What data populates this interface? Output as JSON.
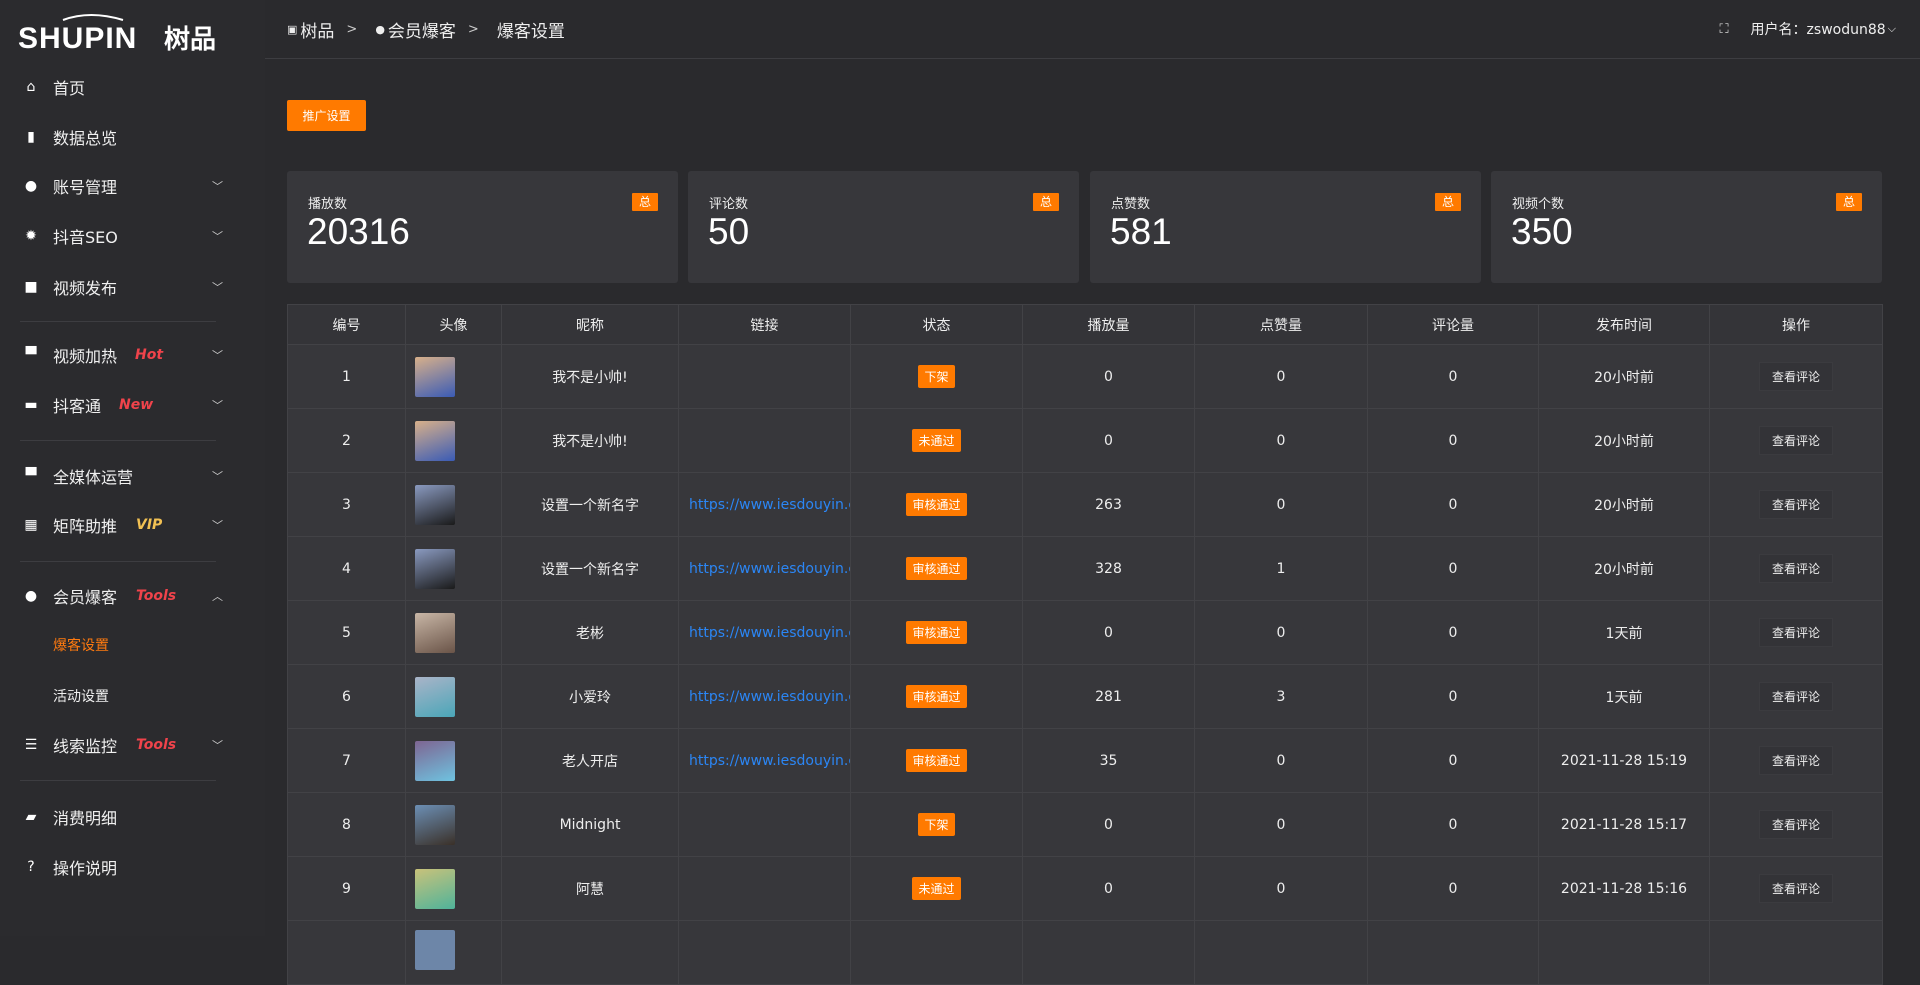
{
  "brand": {
    "logo_text": "SHUPIN 树品"
  },
  "sidebar": {
    "items": [
      {
        "label": "首页",
        "icon": "home-icon",
        "glyph": "⌂",
        "chevron": false
      },
      {
        "label": "数据总览",
        "icon": "bar-chart-icon",
        "glyph": "▮",
        "chevron": false
      },
      {
        "label": "账号管理",
        "icon": "user-icon",
        "glyph": "●",
        "chevron": "down"
      },
      {
        "label": "抖音SEO",
        "icon": "gear-icon",
        "glyph": "✹",
        "chevron": "down"
      },
      {
        "label": "视频发布",
        "icon": "camera-icon",
        "glyph": "■",
        "chevron": "down"
      },
      {
        "label": "视频加热",
        "icon": "monitor-icon",
        "glyph": "▀",
        "chevron": "down",
        "badge": "Hot"
      },
      {
        "label": "抖客通",
        "icon": "chat-icon",
        "glyph": "▬",
        "chevron": "down",
        "badge": "New"
      },
      {
        "label": "全媒体运营",
        "icon": "desktop-icon",
        "glyph": "▀",
        "chevron": "down"
      },
      {
        "label": "矩阵助推",
        "icon": "grid-icon",
        "glyph": "▦",
        "chevron": "down",
        "badge": "VIP"
      },
      {
        "label": "会员爆客",
        "icon": "user-icon",
        "glyph": "●",
        "chevron": "up",
        "badge": "Tools"
      },
      {
        "label": "爆客设置",
        "sub": true,
        "active": true
      },
      {
        "label": "活动设置",
        "sub": true
      },
      {
        "label": "线索监控",
        "icon": "sliders-icon",
        "glyph": "☰",
        "chevron": "down",
        "badge": "Tools"
      },
      {
        "label": "消费明细",
        "icon": "wallet-icon",
        "glyph": "▰",
        "chevron": false
      },
      {
        "label": "操作说明",
        "icon": "help-icon",
        "glyph": "?",
        "chevron": false
      }
    ]
  },
  "header": {
    "breadcrumb": [
      "树品",
      "会员爆客",
      "爆客设置"
    ],
    "user_label": "用户名：zswodun88"
  },
  "toolbar": {
    "promo_label": "推广设置"
  },
  "stats": [
    {
      "title": "播放数",
      "value": "20316",
      "tag": "总"
    },
    {
      "title": "评论数",
      "value": "50",
      "tag": "总"
    },
    {
      "title": "点赞数",
      "value": "581",
      "tag": "总"
    },
    {
      "title": "视频个数",
      "value": "350",
      "tag": "总"
    }
  ],
  "table": {
    "columns": [
      "编号",
      "头像",
      "昵称",
      "链接",
      "状态",
      "播放量",
      "点赞量",
      "评论量",
      "发布时间",
      "操作"
    ],
    "action_label": "查看评论",
    "rows": [
      {
        "id": "1",
        "name": "我不是小帅!",
        "link": "",
        "status": "下架",
        "plays": "0",
        "likes": "0",
        "comments": "0",
        "time": "20小时前",
        "avatar": [
          "#d8b08a",
          "#3a5bb5"
        ]
      },
      {
        "id": "2",
        "name": "我不是小帅!",
        "link": "",
        "status": "未通过",
        "plays": "0",
        "likes": "0",
        "comments": "0",
        "time": "20小时前",
        "avatar": [
          "#d8b08a",
          "#3a5bb5"
        ]
      },
      {
        "id": "3",
        "name": "设置一个新名字",
        "link": "https://www.iesdouyin.c",
        "status": "审核通过",
        "plays": "263",
        "likes": "0",
        "comments": "0",
        "time": "20小时前",
        "avatar": [
          "#8a9ac0",
          "#1a1a1a"
        ]
      },
      {
        "id": "4",
        "name": "设置一个新名字",
        "link": "https://www.iesdouyin.c",
        "status": "审核通过",
        "plays": "328",
        "likes": "1",
        "comments": "0",
        "time": "20小时前",
        "avatar": [
          "#8a9ac0",
          "#1a1a1a"
        ]
      },
      {
        "id": "5",
        "name": "老彬",
        "link": "https://www.iesdouyin.c",
        "status": "审核通过",
        "plays": "0",
        "likes": "0",
        "comments": "0",
        "time": "1天前",
        "avatar": [
          "#c8b6a6",
          "#6a5448"
        ]
      },
      {
        "id": "6",
        "name": "小爱玲",
        "link": "https://www.iesdouyin.c",
        "status": "审核通过",
        "plays": "281",
        "likes": "3",
        "comments": "0",
        "time": "1天前",
        "avatar": [
          "#aab4c8",
          "#4aa6b8"
        ]
      },
      {
        "id": "7",
        "name": "老人开店",
        "link": "https://www.iesdouyin.c",
        "status": "审核通过",
        "plays": "35",
        "likes": "0",
        "comments": "0",
        "time": "2021-11-28 15:19",
        "avatar": [
          "#7e6592",
          "#6fc3e0"
        ]
      },
      {
        "id": "8",
        "name": "Midnight",
        "link": "",
        "status": "下架",
        "plays": "0",
        "likes": "0",
        "comments": "0",
        "time": "2021-11-28 15:17",
        "avatar": [
          "#6c8fb5",
          "#3a3028"
        ]
      },
      {
        "id": "9",
        "name": "阿慧",
        "link": "",
        "status": "未通过",
        "plays": "0",
        "likes": "0",
        "comments": "0",
        "time": "2021-11-28 15:16",
        "avatar": [
          "#c9c27a",
          "#4fb39a"
        ]
      }
    ]
  },
  "colors": {
    "accent": "#ff7a00",
    "link": "#2b86f5",
    "badge_red": "#f0434b",
    "badge_vip": "#f2c153"
  }
}
